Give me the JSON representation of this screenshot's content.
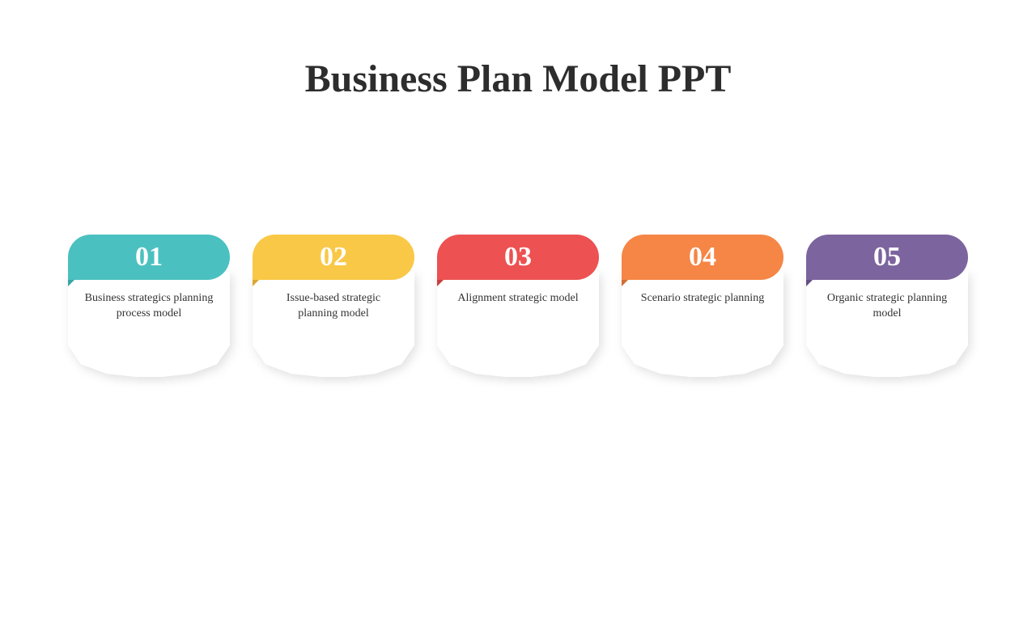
{
  "title": "Business Plan Model PPT",
  "title_fontsize": 48,
  "title_color": "#2d2d2d",
  "background_color": "#ffffff",
  "card_body_color": "#ffffff",
  "card_text_color": "#333333",
  "card_number_color": "#ffffff",
  "card_number_fontsize": 34,
  "card_text_fontsize": 14,
  "shadow_color": "rgba(0,0,0,0.12)",
  "cards": [
    {
      "number": "01",
      "label": "Business strategics planning process model",
      "color": "#4bc0c0",
      "fold_color": "#3aa5a5"
    },
    {
      "number": "02",
      "label": "Issue-based strategic planning model",
      "color": "#f9c846",
      "fold_color": "#d9a830"
    },
    {
      "number": "03",
      "label": "Alignment strategic model",
      "color": "#ed5151",
      "fold_color": "#c93e3e"
    },
    {
      "number": "04",
      "label": "Scenario strategic planning",
      "color": "#f58646",
      "fold_color": "#d36d32"
    },
    {
      "number": "05",
      "label": "Organic strategic planning model",
      "color": "#7c649e",
      "fold_color": "#634e82"
    }
  ]
}
